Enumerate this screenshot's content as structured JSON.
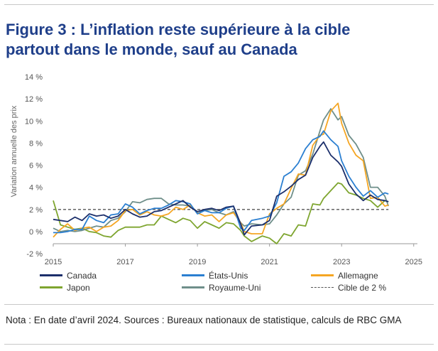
{
  "title": {
    "line1": "Figure 3 : L’inflation reste supérieure à la cible",
    "line2": "partout dans le monde, sauf au Canada"
  },
  "note": "Nota : En date d’avril 2024. Sources : Bureaux nationaux de statistique, calculs de RBC GMA",
  "colors": {
    "title": "#1f3f8a",
    "canada": "#1c2f6b",
    "etats_unis": "#2b7fd1",
    "allemagne": "#f5a623",
    "japon": "#7ea52f",
    "royaume_uni": "#6f8f8a",
    "cible": "#555555"
  },
  "chart_data": {
    "type": "line",
    "title": "Figure 3 : L’inflation reste supérieure à la cible partout dans le monde, sauf au Canada",
    "xlabel": "",
    "ylabel": "Variation annuelle des prix",
    "xlim": [
      2015,
      2025.3
    ],
    "ylim": [
      -2,
      14
    ],
    "x_ticks": [
      2015,
      2017,
      2019,
      2021,
      2023,
      2025
    ],
    "y_ticks": [
      -2,
      0,
      2,
      4,
      6,
      8,
      10,
      12,
      14
    ],
    "y_tick_labels": [
      "-2 %",
      "0 %",
      "2 %",
      "4 %",
      "6 %",
      "8 %",
      "10 %",
      "12 %",
      "14 %"
    ],
    "grid": false,
    "legend_position": "bottom",
    "series": [
      {
        "name": "Canada",
        "key": "canada",
        "x": [
          2015,
          2015.2,
          2015.4,
          2015.6,
          2015.8,
          2016,
          2016.2,
          2016.4,
          2016.6,
          2016.8,
          2017,
          2017.2,
          2017.4,
          2017.6,
          2017.8,
          2018,
          2018.2,
          2018.4,
          2018.6,
          2018.8,
          2019,
          2019.2,
          2019.4,
          2019.6,
          2019.8,
          2020,
          2020.2,
          2020.3,
          2020.5,
          2020.8,
          2021,
          2021.2,
          2021.4,
          2021.6,
          2021.8,
          2022,
          2022.2,
          2022.4,
          2022.5,
          2022.7,
          2022.9,
          2023,
          2023.2,
          2023.4,
          2023.6,
          2023.8,
          2024,
          2024.2,
          2024.3
        ],
        "values": [
          1.1,
          1.0,
          0.9,
          1.3,
          1.0,
          1.6,
          1.4,
          1.5,
          1.2,
          1.4,
          2.0,
          1.6,
          1.3,
          1.4,
          1.8,
          1.9,
          2.2,
          2.5,
          2.8,
          2.2,
          1.8,
          2.0,
          2.1,
          1.9,
          2.2,
          2.3,
          0.7,
          -0.3,
          0.5,
          0.6,
          1.0,
          3.2,
          3.6,
          4.1,
          4.7,
          5.1,
          6.7,
          7.7,
          8.1,
          6.9,
          6.3,
          5.9,
          4.3,
          3.4,
          2.8,
          3.3,
          2.9,
          2.8,
          2.7
        ]
      },
      {
        "name": "États-Unis",
        "key": "etats_unis",
        "x": [
          2015,
          2015.2,
          2015.4,
          2015.6,
          2015.8,
          2016,
          2016.2,
          2016.4,
          2016.6,
          2016.8,
          2017,
          2017.2,
          2017.4,
          2017.6,
          2017.8,
          2018,
          2018.2,
          2018.4,
          2018.6,
          2018.8,
          2019,
          2019.2,
          2019.4,
          2019.6,
          2019.8,
          2020,
          2020.2,
          2020.3,
          2020.5,
          2020.8,
          2021,
          2021.2,
          2021.4,
          2021.6,
          2021.8,
          2022,
          2022.2,
          2022.4,
          2022.5,
          2022.7,
          2022.9,
          2023,
          2023.2,
          2023.4,
          2023.6,
          2023.8,
          2024,
          2024.2,
          2024.3
        ],
        "values": [
          -0.1,
          -0.1,
          0.0,
          0.2,
          0.2,
          1.4,
          1.0,
          0.8,
          1.5,
          1.6,
          2.5,
          2.2,
          1.6,
          1.9,
          2.1,
          2.1,
          2.4,
          2.8,
          2.7,
          2.5,
          1.6,
          1.9,
          1.7,
          1.7,
          2.1,
          2.3,
          0.3,
          0.1,
          1.0,
          1.2,
          1.4,
          2.6,
          5.0,
          5.4,
          6.2,
          7.5,
          8.3,
          8.6,
          9.1,
          8.3,
          7.7,
          6.4,
          5.0,
          4.0,
          3.2,
          3.7,
          3.1,
          3.5,
          3.4
        ]
      },
      {
        "name": "Allemagne",
        "key": "allemagne",
        "x": [
          2015,
          2015.2,
          2015.4,
          2015.6,
          2015.8,
          2016,
          2016.2,
          2016.4,
          2016.6,
          2016.8,
          2017,
          2017.2,
          2017.4,
          2017.6,
          2017.8,
          2018,
          2018.2,
          2018.4,
          2018.6,
          2018.8,
          2019,
          2019.2,
          2019.4,
          2019.6,
          2019.8,
          2020,
          2020.2,
          2020.3,
          2020.5,
          2020.8,
          2021,
          2021.2,
          2021.4,
          2021.6,
          2021.8,
          2022,
          2022.2,
          2022.4,
          2022.5,
          2022.7,
          2022.9,
          2023,
          2023.2,
          2023.4,
          2023.6,
          2023.8,
          2024,
          2024.2,
          2024.3
        ],
        "values": [
          -0.5,
          0.2,
          0.7,
          0.1,
          0.3,
          0.4,
          0.0,
          0.4,
          0.5,
          1.0,
          1.9,
          2.0,
          1.5,
          1.8,
          1.5,
          1.4,
          1.6,
          2.2,
          2.0,
          2.4,
          1.7,
          1.4,
          1.5,
          0.9,
          1.5,
          1.7,
          0.8,
          0.0,
          -0.2,
          -0.2,
          1.6,
          2.1,
          2.5,
          3.9,
          5.2,
          5.1,
          7.8,
          8.7,
          8.8,
          10.9,
          11.6,
          9.8,
          8.0,
          6.9,
          6.4,
          3.0,
          3.1,
          2.3,
          2.4
        ]
      },
      {
        "name": "Japon",
        "key": "japon",
        "x": [
          2015,
          2015.2,
          2015.4,
          2015.6,
          2015.8,
          2016,
          2016.2,
          2016.4,
          2016.6,
          2016.8,
          2017,
          2017.2,
          2017.4,
          2017.6,
          2017.8,
          2018,
          2018.2,
          2018.4,
          2018.6,
          2018.8,
          2019,
          2019.2,
          2019.4,
          2019.6,
          2019.8,
          2020,
          2020.2,
          2020.3,
          2020.5,
          2020.8,
          2021,
          2021.2,
          2021.4,
          2021.6,
          2021.8,
          2022,
          2022.2,
          2022.4,
          2022.5,
          2022.7,
          2022.9,
          2023,
          2023.2,
          2023.4,
          2023.6,
          2023.8,
          2024,
          2024.2,
          2024.3
        ],
        "values": [
          2.8,
          0.6,
          0.4,
          0.2,
          0.3,
          0.0,
          -0.1,
          -0.4,
          -0.5,
          0.1,
          0.4,
          0.4,
          0.4,
          0.6,
          0.6,
          1.4,
          1.1,
          0.8,
          1.2,
          1.0,
          0.3,
          0.9,
          0.6,
          0.3,
          0.8,
          0.7,
          0.1,
          -0.4,
          -0.9,
          -0.4,
          -0.6,
          -1.1,
          -0.2,
          -0.4,
          0.6,
          0.5,
          2.5,
          2.4,
          3.0,
          3.7,
          4.4,
          4.3,
          3.5,
          3.3,
          3.0,
          2.8,
          2.2,
          2.8,
          2.7
        ]
      },
      {
        "name": "Royaume-Uni",
        "key": "royaume_uni",
        "x": [
          2015,
          2015.2,
          2015.4,
          2015.6,
          2015.8,
          2016,
          2016.2,
          2016.4,
          2016.6,
          2016.8,
          2017,
          2017.2,
          2017.4,
          2017.6,
          2017.8,
          2018,
          2018.2,
          2018.4,
          2018.6,
          2018.8,
          2019,
          2019.2,
          2019.4,
          2019.6,
          2019.8,
          2020,
          2020.2,
          2020.3,
          2020.5,
          2020.8,
          2021,
          2021.2,
          2021.4,
          2021.6,
          2021.8,
          2022,
          2022.2,
          2022.4,
          2022.5,
          2022.7,
          2022.9,
          2023,
          2023.2,
          2023.4,
          2023.6,
          2023.8,
          2024,
          2024.2,
          2024.3
        ],
        "values": [
          0.3,
          0.0,
          0.1,
          0.0,
          0.1,
          0.3,
          0.5,
          0.4,
          1.0,
          1.2,
          1.8,
          2.7,
          2.6,
          2.9,
          3.0,
          3.0,
          2.5,
          2.4,
          2.4,
          2.3,
          1.8,
          1.9,
          2.0,
          1.7,
          1.5,
          1.8,
          0.8,
          0.5,
          0.7,
          0.6,
          0.7,
          1.5,
          2.5,
          3.1,
          5.1,
          5.5,
          7.0,
          9.1,
          10.1,
          11.1,
          10.1,
          10.4,
          8.7,
          7.9,
          6.7,
          4.0,
          4.0,
          3.2,
          2.3
        ]
      },
      {
        "name": "Cible de 2 %",
        "key": "cible",
        "x": [
          2015,
          2024.3
        ],
        "values": [
          2,
          2
        ]
      }
    ]
  }
}
